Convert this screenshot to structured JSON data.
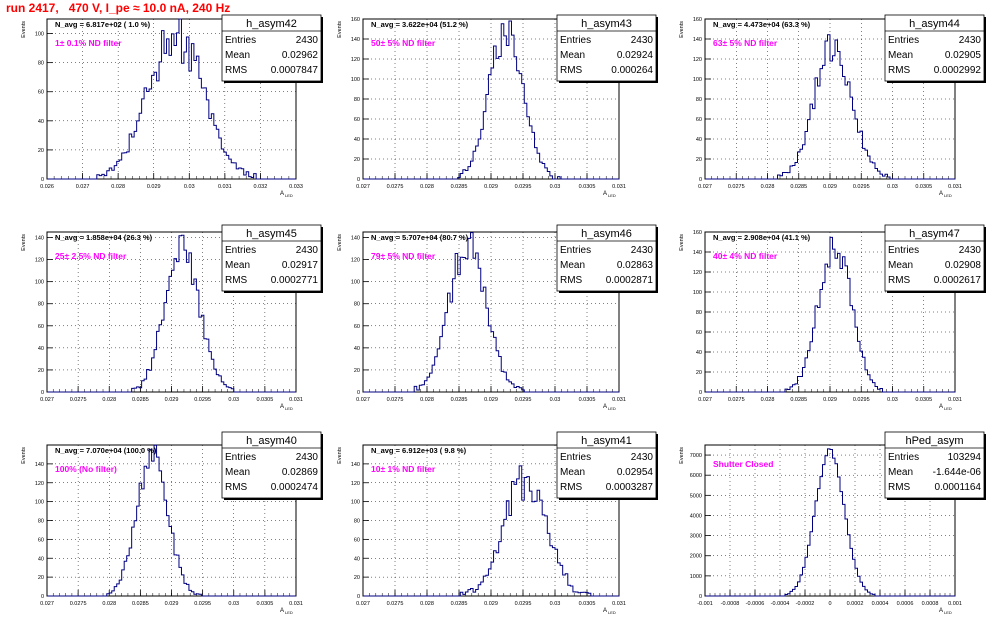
{
  "run_title": "run 2417,   470 V, I_pe ≈ 10.0 nA, 240 Hz",
  "colors": {
    "title": "#ff0000",
    "annotation": "#ff00ff",
    "histogram": "#000080",
    "grid": "#000000"
  },
  "stats_labels": {
    "entries": "Entries",
    "mean": "Mean",
    "rms": "RMS"
  },
  "y_axis_label": "Events",
  "x_axis_label": "A",
  "x_axis_subscript": "LED",
  "chart_data": [
    {
      "type": "histogram",
      "name": "h_asym42",
      "navg": "N_avg = 6.817e+02 ( 1.0 %)",
      "filter": "1± 0.1% ND filter",
      "entries": "2430",
      "mean": "0.02962",
      "rms": "0.0007847",
      "xlim": [
        0.026,
        0.033
      ],
      "ylim": [
        0,
        110
      ],
      "xticks": [
        "0.026",
        "0.027",
        "0.028",
        "0.029",
        "0.03",
        "0.031",
        "0.032",
        "0.033"
      ],
      "yticks": [
        0,
        20,
        40,
        60,
        80,
        100
      ],
      "peak": 100,
      "center": 0.02962,
      "sigma": 0.00078,
      "noise": 0.18,
      "seed": 42,
      "grid": true
    },
    {
      "type": "histogram",
      "name": "h_asym43",
      "navg": "N_avg = 3.622e+04 (51.2 %)",
      "filter": "50± 5% ND filter",
      "entries": "2430",
      "mean": "0.02924",
      "rms": "0.000264",
      "xlim": [
        0.027,
        0.031
      ],
      "ylim": [
        0,
        160
      ],
      "xticks": [
        "0.027",
        "0.0275",
        "0.028",
        "0.0285",
        "0.029",
        "0.0295",
        "0.03",
        "0.0305",
        "0.031"
      ],
      "yticks": [
        0,
        20,
        40,
        60,
        80,
        100,
        120,
        140,
        160
      ],
      "peak": 150,
      "center": 0.02924,
      "sigma": 0.000264,
      "noise": 0.12,
      "seed": 43,
      "grid": true
    },
    {
      "type": "histogram",
      "name": "h_asym44",
      "navg": "N_avg = 4.473e+04 (63.3 %)",
      "filter": "63± 5% ND filter",
      "entries": "2430",
      "mean": "0.02905",
      "rms": "0.0002992",
      "xlim": [
        0.027,
        0.031
      ],
      "ylim": [
        0,
        160
      ],
      "xticks": [
        "0.027",
        "0.0275",
        "0.028",
        "0.0285",
        "0.029",
        "0.0295",
        "0.03",
        "0.0305",
        "0.031"
      ],
      "yticks": [
        0,
        20,
        40,
        60,
        80,
        100,
        120,
        140,
        160
      ],
      "peak": 135,
      "center": 0.02905,
      "sigma": 0.0003,
      "noise": 0.12,
      "seed": 44,
      "grid": true
    },
    {
      "type": "histogram",
      "name": "h_asym45",
      "navg": "N_avg = 1.858e+04 (26.3 %)",
      "filter": "25± 2.5% ND filter",
      "entries": "2430",
      "mean": "0.02917",
      "rms": "0.0002771",
      "xlim": [
        0.027,
        0.031
      ],
      "ylim": [
        0,
        145
      ],
      "xticks": [
        "0.027",
        "0.0275",
        "0.028",
        "0.0285",
        "0.029",
        "0.0295",
        "0.03",
        "0.0305",
        "0.031"
      ],
      "yticks": [
        0,
        20,
        40,
        60,
        80,
        100,
        120,
        140
      ],
      "peak": 130,
      "center": 0.02917,
      "sigma": 0.000277,
      "noise": 0.12,
      "seed": 45,
      "grid": true
    },
    {
      "type": "histogram",
      "name": "h_asym46",
      "navg": "N_avg = 5.707e+04 (80.7 %)",
      "filter": "79± 5% ND filter",
      "entries": "2430",
      "mean": "0.02863",
      "rms": "0.0002871",
      "xlim": [
        0.027,
        0.031
      ],
      "ylim": [
        0,
        145
      ],
      "xticks": [
        "0.027",
        "0.0275",
        "0.028",
        "0.0285",
        "0.029",
        "0.0295",
        "0.03",
        "0.0305",
        "0.031"
      ],
      "yticks": [
        0,
        20,
        40,
        60,
        80,
        100,
        120,
        140
      ],
      "peak": 135,
      "center": 0.02863,
      "sigma": 0.000287,
      "noise": 0.12,
      "seed": 46,
      "grid": true
    },
    {
      "type": "histogram",
      "name": "h_asym47",
      "navg": "N_avg = 2.908e+04 (41.1 %)",
      "filter": "40± 4% ND filter",
      "entries": "2430",
      "mean": "0.02908",
      "rms": "0.0002617",
      "xlim": [
        0.027,
        0.031
      ],
      "ylim": [
        0,
        160
      ],
      "xticks": [
        "0.027",
        "0.0275",
        "0.028",
        "0.0285",
        "0.029",
        "0.0295",
        "0.03",
        "0.0305",
        "0.031"
      ],
      "yticks": [
        0,
        20,
        40,
        60,
        80,
        100,
        120,
        140,
        160
      ],
      "peak": 148,
      "center": 0.02908,
      "sigma": 0.000262,
      "noise": 0.1,
      "seed": 47,
      "grid": true
    },
    {
      "type": "histogram",
      "name": "h_asym40",
      "navg": "N_avg = 7.070e+04 (100.0 %)",
      "filter": "100% (No filter)",
      "entries": "2430",
      "mean": "0.02869",
      "rms": "0.0002474",
      "xlim": [
        0.027,
        0.031
      ],
      "ylim": [
        0,
        160
      ],
      "xticks": [
        "0.027",
        "0.0275",
        "0.028",
        "0.0285",
        "0.029",
        "0.0295",
        "0.03",
        "0.0305",
        "0.031"
      ],
      "yticks": [
        0,
        20,
        40,
        60,
        80,
        100,
        120,
        140
      ],
      "peak": 150,
      "center": 0.02869,
      "sigma": 0.000247,
      "noise": 0.1,
      "seed": 40,
      "grid": true
    },
    {
      "type": "histogram",
      "name": "h_asym41",
      "navg": "N_avg = 6.912e+03 ( 9.8 %)",
      "filter": "10± 1% ND filter",
      "entries": "2430",
      "mean": "0.02954",
      "rms": "0.0003287",
      "xlim": [
        0.027,
        0.031
      ],
      "ylim": [
        0,
        160
      ],
      "xticks": [
        "0.027",
        "0.0275",
        "0.028",
        "0.0285",
        "0.029",
        "0.0295",
        "0.03",
        "0.0305",
        "0.031"
      ],
      "yticks": [
        0,
        20,
        40,
        60,
        80,
        100,
        120,
        140
      ],
      "peak": 125,
      "center": 0.02954,
      "sigma": 0.00033,
      "noise": 0.18,
      "seed": 41,
      "grid": true
    },
    {
      "type": "histogram",
      "name": "hPed_asym",
      "navg": "",
      "filter": "Shutter Closed",
      "entries": "103294",
      "mean": "-1.644e-06",
      "rms": "0.0001164",
      "xlim": [
        -0.001,
        0.001
      ],
      "ylim": [
        0,
        7500
      ],
      "xticks": [
        "-0.001",
        "-0.0008",
        "-0.0006",
        "-0.0004",
        "-0.0002",
        "0",
        "0.0002",
        "0.0004",
        "0.0006",
        "0.0008",
        "0.001"
      ],
      "yticks": [
        0,
        1000,
        2000,
        3000,
        4000,
        5000,
        6000,
        7000
      ],
      "peak": 7200,
      "center": -1.6e-06,
      "sigma": 0.000116,
      "noise": 0.02,
      "seed": 99,
      "grid": true
    }
  ]
}
